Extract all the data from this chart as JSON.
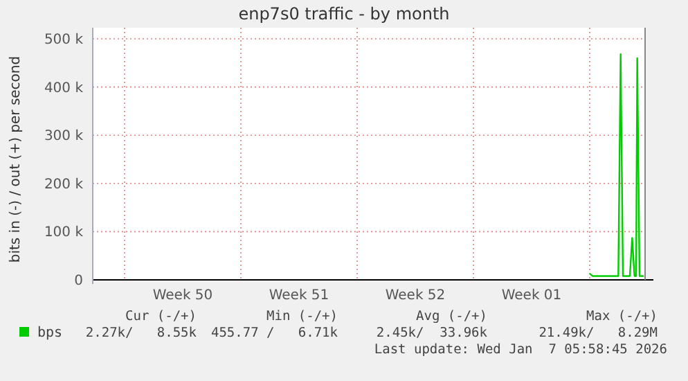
{
  "chart_data": {
    "type": "line",
    "title": "enp7s0 traffic - by month",
    "ylabel": "bits in (-) / out (+) per second",
    "series": [
      {
        "name": "bps",
        "color": "#00cc00",
        "x": [
          "2026-01-05T00:00",
          "2026-01-05T04:00",
          "2026-01-06T17:20",
          "2026-01-06T20:40",
          "2026-01-07T00:00",
          "2026-01-07T10:00",
          "2026-01-07T13:20",
          "2026-01-07T16:40",
          "2026-01-07T19:00",
          "2026-01-07T20:40",
          "2026-01-08T00:00",
          "2026-01-08T06:00"
        ],
        "values": [
          13000,
          8000,
          8000,
          468000,
          8000,
          8000,
          87000,
          8000,
          8000,
          460000,
          8000,
          8000
        ]
      }
    ],
    "xlim": [
      "2025-12-06T02:00",
      "2026-01-08T08:00"
    ],
    "xticks": [
      {
        "value": "2025-12-08T00:00",
        "label": null
      },
      {
        "value": "2025-12-11T12:00",
        "label": "Week 50"
      },
      {
        "value": "2025-12-15T00:00",
        "label": null
      },
      {
        "value": "2025-12-18T12:00",
        "label": "Week 51"
      },
      {
        "value": "2025-12-22T00:00",
        "label": null
      },
      {
        "value": "2025-12-25T12:00",
        "label": "Week 52"
      },
      {
        "value": "2025-12-29T00:00",
        "label": null
      },
      {
        "value": "2026-01-01T12:00",
        "label": "Week 01"
      },
      {
        "value": "2026-01-05T00:00",
        "label": null
      }
    ],
    "ylim": [
      0,
      500000
    ],
    "yticks": [
      {
        "value": 0,
        "label": "0"
      },
      {
        "value": 100000,
        "label": "100 k"
      },
      {
        "value": 200000,
        "label": "200 k"
      },
      {
        "value": 300000,
        "label": "300 k"
      },
      {
        "value": 400000,
        "label": "400 k"
      },
      {
        "value": 500000,
        "label": "500 k"
      }
    ],
    "grid": true,
    "legend": "bottom left",
    "marker": "none",
    "line_style": "solid",
    "annotations": [
      "Cur (-/+)",
      "Min (-/+)",
      "Avg (-/+)",
      "Max (-/+)",
      "2.27k/   8.55k",
      "455.77 /   6.71k",
      "2.45k/  33.96k",
      "21.49k/   8.29M",
      "Last update: Wed Jan  7 05:58:45 2026"
    ]
  }
}
